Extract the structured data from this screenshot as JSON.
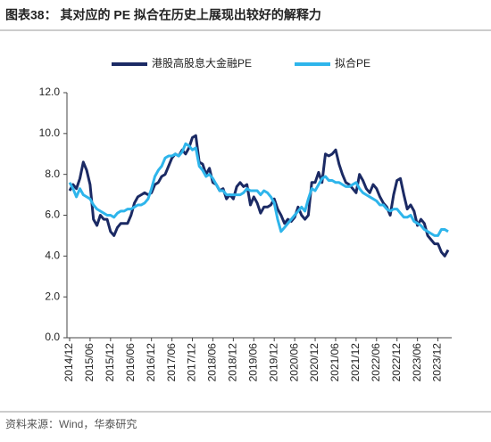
{
  "chart_data": {
    "type": "line",
    "title": "图表38： 其对应的 PE 拟合在历史上展现出较好的解释力",
    "source": "资料来源：Wind，华泰研究",
    "categories": [
      "2014/12",
      null,
      null,
      null,
      null,
      null,
      "2015/06",
      null,
      null,
      null,
      null,
      null,
      "2015/12",
      null,
      null,
      null,
      null,
      null,
      "2016/06",
      null,
      null,
      null,
      null,
      null,
      "2016/12",
      null,
      null,
      null,
      null,
      null,
      "2017/06",
      null,
      null,
      null,
      null,
      null,
      "2017/12",
      null,
      null,
      null,
      null,
      null,
      "2018/06",
      null,
      null,
      null,
      null,
      null,
      "2018/12",
      null,
      null,
      null,
      null,
      null,
      "2019/06",
      null,
      null,
      null,
      null,
      null,
      "2019/12",
      null,
      null,
      null,
      null,
      null,
      "2020/06",
      null,
      null,
      null,
      null,
      null,
      "2020/12",
      null,
      null,
      null,
      null,
      null,
      "2021/06",
      null,
      null,
      null,
      null,
      null,
      "2021/12",
      null,
      null,
      null,
      null,
      null,
      "2022/06",
      null,
      null,
      null,
      null,
      null,
      "2022/12",
      null,
      null,
      null,
      null,
      null,
      "2023/06",
      null,
      null,
      null,
      null,
      null,
      "2023/12",
      null,
      null,
      null
    ],
    "series": [
      {
        "name": "港股高股息大金融PE",
        "color": "#1b2a64",
        "values": [
          7.2,
          7.5,
          7.3,
          7.8,
          8.6,
          8.2,
          7.5,
          5.8,
          5.5,
          6.0,
          5.8,
          5.8,
          5.2,
          5.0,
          5.4,
          5.6,
          5.6,
          5.6,
          6.0,
          6.6,
          6.9,
          7.0,
          7.1,
          7.0,
          7.1,
          7.5,
          7.6,
          7.9,
          8.0,
          8.4,
          8.8,
          9.0,
          8.9,
          9.2,
          9.0,
          9.3,
          9.8,
          9.9,
          8.6,
          8.5,
          8.0,
          8.3,
          7.6,
          7.5,
          7.2,
          7.3,
          6.8,
          7.0,
          6.8,
          7.4,
          7.6,
          7.4,
          7.5,
          6.5,
          6.9,
          6.6,
          6.1,
          6.4,
          6.4,
          6.5,
          6.8,
          6.3,
          6.0,
          5.6,
          5.8,
          5.7,
          5.9,
          6.4,
          6.0,
          5.8,
          6.0,
          7.6,
          7.6,
          8.1,
          7.6,
          9.0,
          8.9,
          9.0,
          9.2,
          8.5,
          8.0,
          7.6,
          7.5,
          7.3,
          7.1,
          8.0,
          7.7,
          7.3,
          7.1,
          7.5,
          7.3,
          6.9,
          6.6,
          6.4,
          6.0,
          7.0,
          7.7,
          7.8,
          7.0,
          6.3,
          6.5,
          6.2,
          5.5,
          5.8,
          5.6,
          5.0,
          4.8,
          4.6,
          4.6,
          4.2,
          4.0,
          4.3
        ]
      },
      {
        "name": "拟合PE",
        "color": "#2eb5eb",
        "values": [
          7.6,
          7.3,
          6.9,
          7.3,
          7.0,
          6.9,
          6.8,
          6.5,
          6.3,
          6.2,
          6.1,
          6.0,
          6.0,
          5.9,
          6.1,
          6.2,
          6.2,
          6.3,
          6.3,
          6.4,
          6.5,
          6.5,
          6.6,
          6.8,
          7.3,
          7.9,
          8.2,
          8.4,
          8.8,
          8.9,
          8.9,
          9.0,
          8.9,
          9.1,
          9.5,
          9.4,
          9.2,
          9.3,
          8.4,
          8.2,
          7.9,
          8.0,
          7.8,
          7.5,
          7.2,
          7.2,
          7.0,
          7.0,
          7.0,
          7.0,
          7.0,
          7.1,
          7.3,
          7.2,
          7.2,
          7.2,
          7.0,
          7.2,
          7.1,
          6.9,
          6.6,
          5.8,
          5.2,
          5.4,
          5.6,
          5.8,
          6.0,
          6.2,
          6.4,
          6.2,
          6.8,
          7.3,
          7.2,
          7.5,
          7.8,
          7.9,
          7.7,
          7.7,
          7.6,
          7.6,
          7.5,
          7.4,
          7.4,
          7.5,
          7.6,
          7.3,
          7.1,
          7.0,
          6.9,
          6.8,
          6.7,
          6.5,
          6.5,
          6.3,
          6.2,
          6.3,
          6.3,
          6.1,
          5.9,
          5.9,
          6.0,
          5.7,
          5.6,
          5.5,
          5.3,
          5.2,
          5.1,
          5.0,
          5.0,
          5.3,
          5.3,
          5.2
        ]
      }
    ],
    "ylim": [
      0,
      12
    ],
    "yticks": [
      {
        "value": 0,
        "label": "0.0"
      },
      {
        "value": 2,
        "label": "2.0"
      },
      {
        "value": 4,
        "label": "4.0"
      },
      {
        "value": 6,
        "label": "6.0"
      },
      {
        "value": 8,
        "label": "8.0"
      },
      {
        "value": 10,
        "label": "10.0"
      },
      {
        "value": 12,
        "label": "12.0"
      }
    ],
    "legend": "top"
  }
}
